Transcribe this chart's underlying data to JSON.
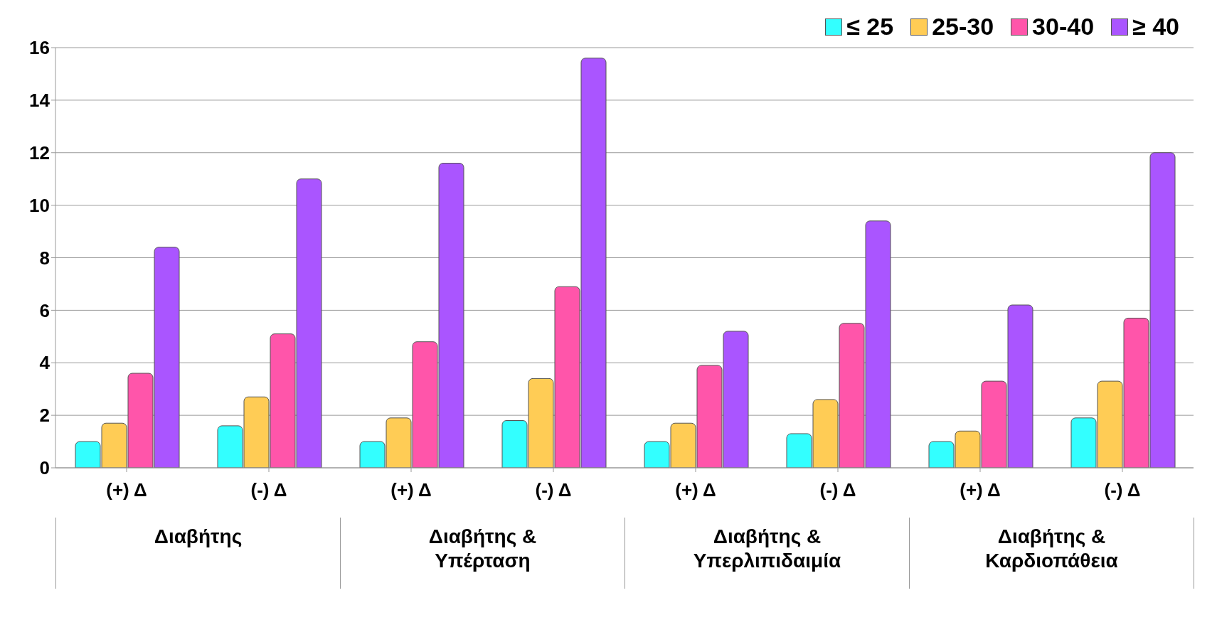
{
  "chart_data": {
    "type": "bar",
    "categories": [
      "(+) Δ",
      "(-) Δ",
      "(+) Δ",
      "(-) Δ",
      "(+) Δ",
      "(-) Δ",
      "(+) Δ",
      "(-) Δ"
    ],
    "series": [
      {
        "name": "≤ 25",
        "color": "#33ffff",
        "values": [
          1.0,
          1.6,
          1.0,
          1.8,
          1.0,
          1.3,
          1.0,
          1.9
        ]
      },
      {
        "name": "25-30",
        "color": "#ffcc55",
        "values": [
          1.7,
          2.7,
          1.9,
          3.4,
          1.7,
          2.6,
          1.4,
          3.3
        ]
      },
      {
        "name": "30-40",
        "color": "#ff55aa",
        "values": [
          3.6,
          5.1,
          4.8,
          6.9,
          3.9,
          5.5,
          3.3,
          5.7
        ]
      },
      {
        "name": "≥ 40",
        "color": "#aa55ff",
        "values": [
          8.4,
          11.0,
          11.6,
          15.6,
          5.2,
          9.4,
          6.2,
          12.0
        ]
      }
    ],
    "annotations": [
      "Διαβήτης",
      "Διαβήτης & Υπέρταση",
      "Διαβήτης & Υπερλιπιδαιμία",
      "Διαβήτης & Καρδιοπάθεια"
    ],
    "ylim": [
      0,
      16
    ],
    "yticks": [
      0,
      2,
      4,
      6,
      8,
      10,
      12,
      14,
      16
    ],
    "grid": "y",
    "legend": "top right"
  }
}
